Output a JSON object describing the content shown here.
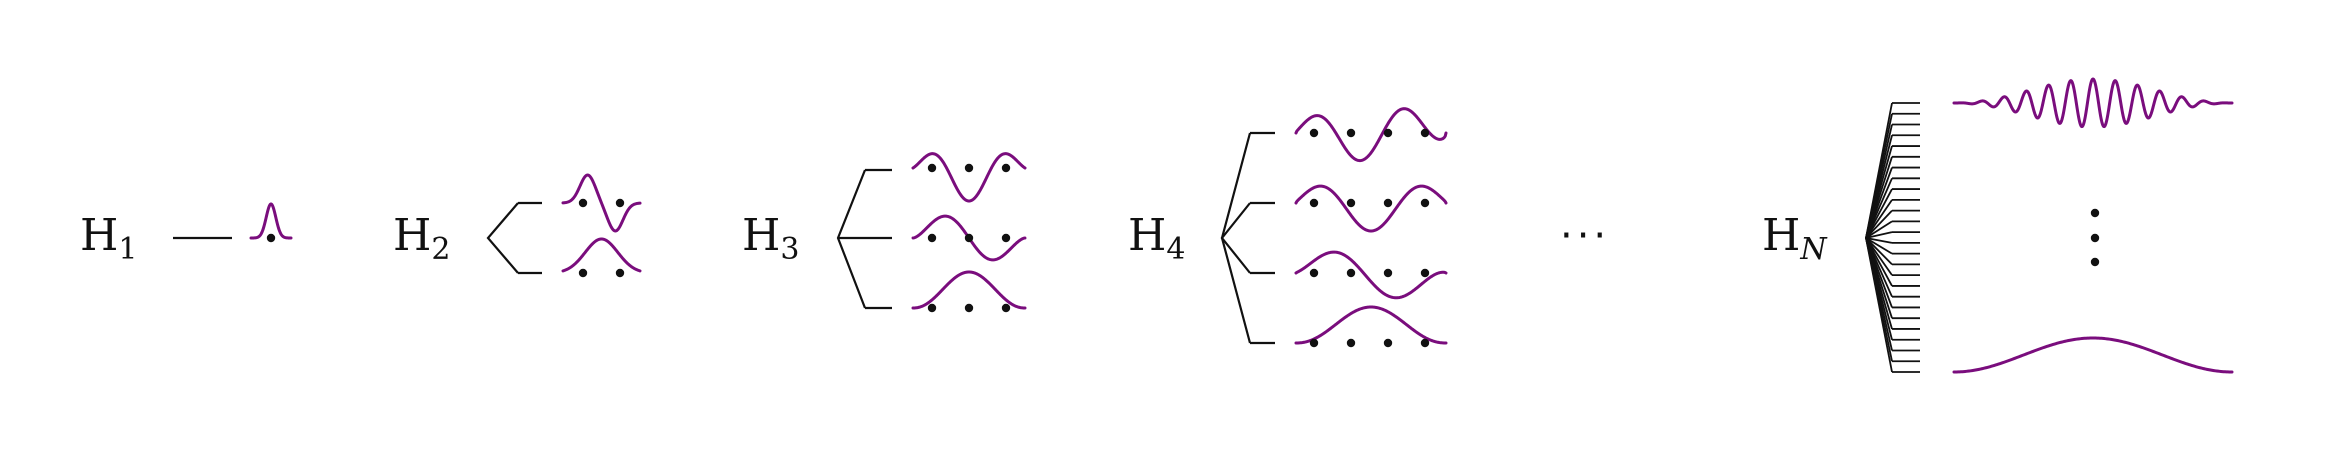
{
  "labels": {
    "h1_base": "H",
    "h1_sub": "1",
    "h2_base": "H",
    "h2_sub": "2",
    "h3_base": "H",
    "h3_sub": "3",
    "h4_base": "H",
    "h4_sub": "4",
    "hn_base": "H",
    "hn_sub": "N"
  },
  "ellipsis": "···",
  "colors": {
    "wave": "#7a0d7d",
    "line": "#111111",
    "dot": "#111111"
  }
}
